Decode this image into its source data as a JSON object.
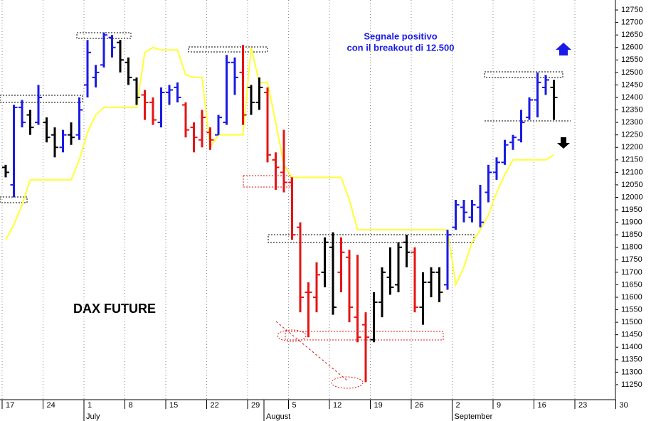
{
  "chart_data": {
    "type": "ohlc",
    "title": "DAX FUTURE",
    "annotation": [
      "Segnale positivo",
      "con il breakout di 12.500"
    ],
    "xticks": [
      "17",
      "24",
      "1",
      "8",
      "15",
      "22",
      "29",
      "5",
      "12",
      "19",
      "26",
      "2",
      "9",
      "16",
      "23",
      "30"
    ],
    "months": [
      {
        "name": "July",
        "first_bar": 10
      },
      {
        "name": "August",
        "first_bar": 32
      },
      {
        "name": "September",
        "first_bar": 55
      }
    ],
    "ylim": [
      11190,
      12790
    ],
    "yticks": [
      11250,
      11300,
      11350,
      11400,
      11450,
      11500,
      11550,
      11600,
      11650,
      11700,
      11750,
      11800,
      11850,
      11900,
      11950,
      12000,
      12050,
      12100,
      12150,
      12200,
      12250,
      12300,
      12350,
      12400,
      12450,
      12500,
      12550,
      12600,
      12650,
      12700,
      12750
    ],
    "ohlc": {
      "high": [
        12130,
        12370,
        12390,
        12350,
        12450,
        12320,
        12280,
        12270,
        12300,
        12400,
        12630,
        12530,
        12660,
        12650,
        12630,
        12560,
        12480,
        12430,
        12400,
        12440,
        12450,
        12460,
        12380,
        12300,
        12350,
        12280,
        12330,
        12570,
        12560,
        12610,
        12450,
        12480,
        12440,
        12180,
        12270,
        12080,
        11900,
        11660,
        11740,
        11840,
        11860,
        11840,
        11790,
        11770,
        11540,
        11620,
        11720,
        11800,
        11820,
        11850,
        11800,
        11700,
        11720,
        11720,
        11870,
        11990,
        11990,
        11990,
        12050,
        12130,
        12160,
        12230,
        12250,
        12350,
        12400,
        12500,
        12490,
        12470
      ],
      "low": [
        12080,
        12000,
        12280,
        12250,
        12290,
        12220,
        12160,
        12180,
        12210,
        12230,
        12400,
        12440,
        12520,
        12560,
        12500,
        12450,
        12370,
        12310,
        12290,
        12280,
        12370,
        12380,
        12240,
        12180,
        12200,
        12190,
        12250,
        12290,
        12410,
        12290,
        12330,
        12350,
        12140,
        12030,
        12020,
        11830,
        11540,
        11440,
        11540,
        11640,
        11530,
        11620,
        11500,
        11420,
        11260,
        11420,
        11520,
        11610,
        11620,
        11720,
        11540,
        11490,
        11600,
        11580,
        11630,
        11870,
        11900,
        11900,
        11880,
        11980,
        12070,
        12130,
        12190,
        12220,
        12310,
        12320,
        12410,
        12310
      ],
      "open": [
        12120,
        12050,
        12360,
        12330,
        12300,
        12300,
        12250,
        12200,
        12250,
        12250,
        12450,
        12480,
        12530,
        12640,
        12620,
        12540,
        12470,
        12410,
        12380,
        12300,
        12420,
        12440,
        12370,
        12280,
        12230,
        12260,
        12250,
        12300,
        12540,
        12500,
        12440,
        12380,
        12420,
        12150,
        12100,
        12060,
        11880,
        11620,
        11600,
        11700,
        11800,
        11700,
        11760,
        11520,
        11490,
        11430,
        11580,
        11680,
        11650,
        11820,
        11780,
        11560,
        11660,
        11700,
        11650,
        11880,
        11960,
        11920,
        11960,
        12020,
        12100,
        12140,
        12220,
        12230,
        12320,
        12390,
        12440,
        12440
      ],
      "close": [
        12100,
        12360,
        12300,
        12280,
        12400,
        12240,
        12200,
        12250,
        12240,
        12350,
        12580,
        12500,
        12650,
        12600,
        12550,
        12480,
        12400,
        12380,
        12310,
        12420,
        12430,
        12400,
        12270,
        12240,
        12320,
        12230,
        12320,
        12540,
        12480,
        12330,
        12380,
        12440,
        12170,
        12120,
        12060,
        11850,
        11600,
        11620,
        11690,
        11820,
        11560,
        11780,
        11560,
        11440,
        11440,
        11580,
        11700,
        11640,
        11800,
        11780,
        11560,
        11660,
        11700,
        11620,
        11850,
        11970,
        11940,
        11970,
        11900,
        12100,
        12140,
        12210,
        12240,
        12300,
        12390,
        12460,
        12470,
        12400
      ],
      "colors": [
        "#000000",
        "#1a1ae6",
        "#1a1ae6",
        "#000000",
        "#1a1ae6",
        "#000000",
        "#000000",
        "#1a1ae6",
        "#000000",
        "#1a1ae6",
        "#1a1ae6",
        "#1a1ae6",
        "#1a1ae6",
        "#1a1ae6",
        "#000000",
        "#000000",
        "#000000",
        "#e61414",
        "#e61414",
        "#1a1ae6",
        "#1a1ae6",
        "#1a1ae6",
        "#e61414",
        "#e61414",
        "#e61414",
        "#e61414",
        "#1a1ae6",
        "#1a1ae6",
        "#1a1ae6",
        "#e61414",
        "#000000",
        "#000000",
        "#e61414",
        "#e61414",
        "#e61414",
        "#e61414",
        "#e61414",
        "#e61414",
        "#e61414",
        "#000000",
        "#000000",
        "#e61414",
        "#e61414",
        "#e61414",
        "#e61414",
        "#000000",
        "#000000",
        "#000000",
        "#000000",
        "#000000",
        "#e61414",
        "#000000",
        "#000000",
        "#000000",
        "#1a1ae6",
        "#1a1ae6",
        "#1a1ae6",
        "#1a1ae6",
        "#1a1ae6",
        "#1a1ae6",
        "#1a1ae6",
        "#1a1ae6",
        "#1a1ae6",
        "#1a1ae6",
        "#1a1ae6",
        "#1a1ae6",
        "#1a1ae6",
        "#000000"
      ]
    },
    "line": {
      "color": "#ffff33",
      "values": [
        11830,
        11890,
        11970,
        12070,
        12070,
        12070,
        12070,
        12070,
        12070,
        12150,
        12260,
        12330,
        12360,
        12360,
        12360,
        12360,
        12360,
        12580,
        12600,
        12590,
        12590,
        12590,
        12490,
        12480,
        12480,
        12200,
        12250,
        12250,
        12250,
        12250,
        12600,
        12460,
        12460,
        12300,
        12130,
        12080,
        12080,
        12080,
        12080,
        12080,
        12080,
        12080,
        11990,
        11870,
        11870,
        11870,
        11870,
        11870,
        11870,
        11870,
        11870,
        11870,
        11870,
        11870,
        11870,
        11650,
        11720,
        11820,
        11870,
        11930,
        12020,
        12090,
        12150,
        12150,
        12150,
        12150,
        12150,
        12170
      ]
    },
    "grid": true
  }
}
